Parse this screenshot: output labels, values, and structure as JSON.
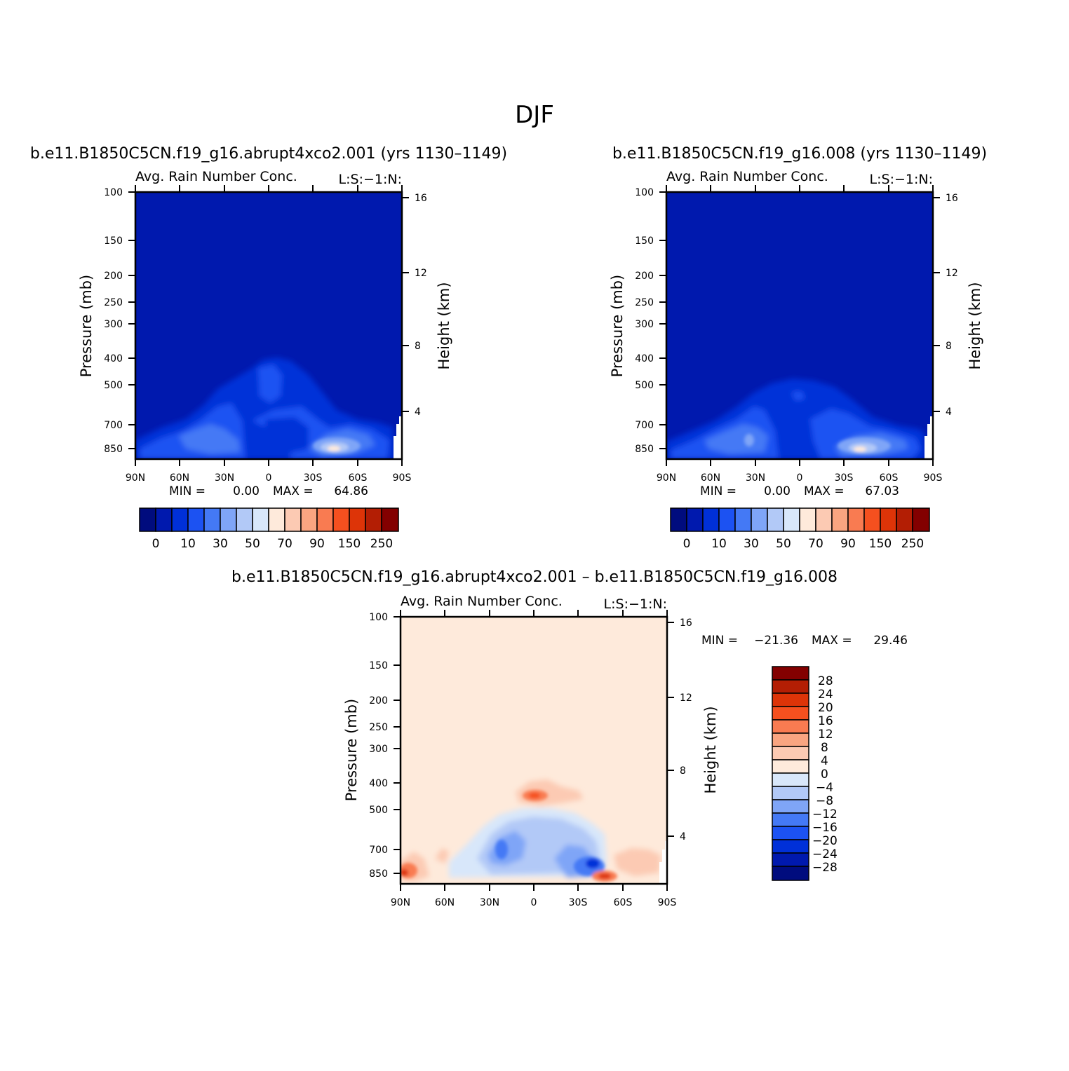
{
  "page_title": "DJF",
  "palette": {
    "abs": [
      "#000c7e",
      "#0019ae",
      "#0030d8",
      "#1c52f2",
      "#4479f5",
      "#7fa5f7",
      "#b2c9f7",
      "#d8e7fa",
      "#feeadb",
      "#fccab3",
      "#f9a581",
      "#f97b51",
      "#f5501f",
      "#dd3408",
      "#b31e04",
      "#830000"
    ],
    "diff": [
      "#000c7e",
      "#0019ae",
      "#0030d8",
      "#1c52f2",
      "#4479f5",
      "#7fa5f7",
      "#b2c9f7",
      "#d8e7fa",
      "#feeadb",
      "#fccab3",
      "#f9a581",
      "#f97b51",
      "#f5501f",
      "#dd3408",
      "#b31e04",
      "#830000"
    ]
  },
  "chart_data": [
    {
      "type": "heatmap",
      "panel": "top-left",
      "title": "b.e11.B1850C5CN.f19_g16.abrupt4xco2.001 (yrs 1130–1149)",
      "subtitle_left": "Avg. Rain Number Conc.",
      "subtitle_right": "L:S:−1:N:",
      "ylabel": "Pressure (mb)",
      "ylabel_right": "Height (km)",
      "x_ticks": [
        "90N",
        "60N",
        "30N",
        "0",
        "30S",
        "60S",
        "90S"
      ],
      "y_ticks": [
        "100",
        "150",
        "200",
        "250",
        "300",
        "400",
        "500",
        "700",
        "850"
      ],
      "y_ticks_right": [
        "16",
        "12",
        "8",
        "4"
      ],
      "min_label": "MIN =",
      "min_value": "0.00",
      "max_label": "MAX =",
      "max_value": "64.86",
      "colorbar_labels": [
        "0",
        "10",
        "30",
        "50",
        "70",
        "90",
        "150",
        "250"
      ],
      "grid": false
    },
    {
      "type": "heatmap",
      "panel": "top-right",
      "title": "b.e11.B1850C5CN.f19_g16.008 (yrs 1130–1149)",
      "subtitle_left": "Avg. Rain Number Conc.",
      "subtitle_right": "L:S:−1:N:",
      "ylabel": "Pressure (mb)",
      "ylabel_right": "Height (km)",
      "x_ticks": [
        "90N",
        "60N",
        "30N",
        "0",
        "30S",
        "60S",
        "90S"
      ],
      "y_ticks": [
        "100",
        "150",
        "200",
        "250",
        "300",
        "400",
        "500",
        "700",
        "850"
      ],
      "y_ticks_right": [
        "16",
        "12",
        "8",
        "4"
      ],
      "min_label": "MIN =",
      "min_value": "0.00",
      "max_label": "MAX =",
      "max_value": "67.03",
      "colorbar_labels": [
        "0",
        "10",
        "30",
        "50",
        "70",
        "90",
        "150",
        "250"
      ],
      "grid": false
    },
    {
      "type": "heatmap",
      "panel": "bottom",
      "title": "b.e11.B1850C5CN.f19_g16.abrupt4xco2.001 – b.e11.B1850C5CN.f19_g16.008",
      "subtitle_left": "Avg. Rain Number Conc.",
      "subtitle_right": "L:S:−1:N:",
      "ylabel": "Pressure (mb)",
      "ylabel_right": "Height (km)",
      "x_ticks": [
        "90N",
        "60N",
        "30N",
        "0",
        "30S",
        "60S",
        "90S"
      ],
      "y_ticks": [
        "100",
        "150",
        "200",
        "250",
        "300",
        "400",
        "500",
        "700",
        "850"
      ],
      "y_ticks_right": [
        "16",
        "12",
        "8",
        "4"
      ],
      "min_label": "MIN =",
      "min_value": "−21.36",
      "max_label": "MAX =",
      "max_value": "29.46",
      "colorbar_labels": [
        "28",
        "24",
        "20",
        "16",
        "12",
        "8",
        "4",
        "0",
        "−4",
        "−8",
        "−12",
        "−16",
        "−20",
        "−24",
        "−28"
      ],
      "grid": false
    }
  ]
}
